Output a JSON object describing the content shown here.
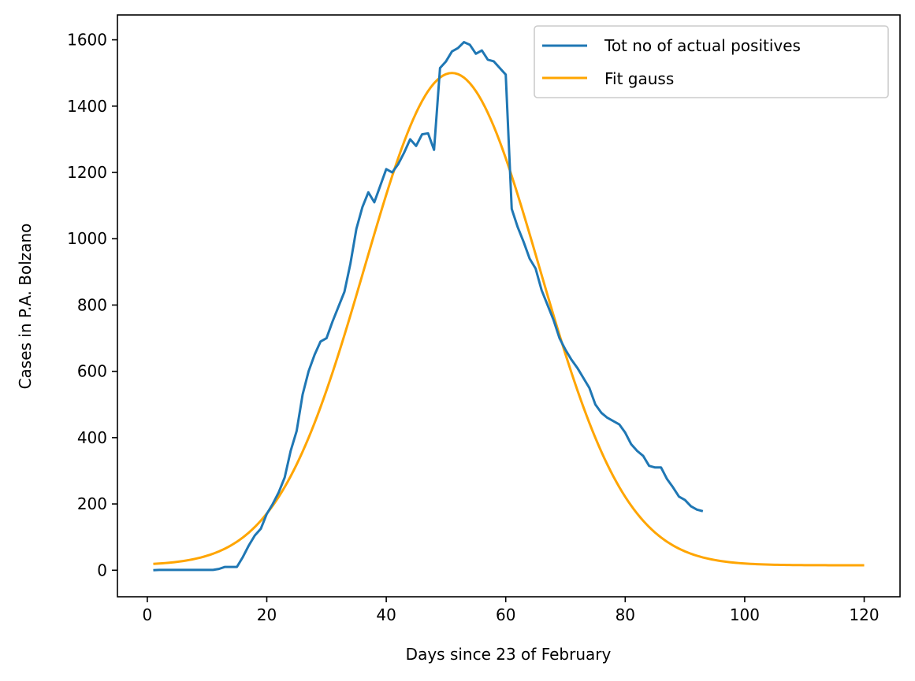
{
  "chart_data": {
    "type": "line",
    "xlabel": "Days since 23 of February",
    "ylabel": "Cases in P.A. Bolzano",
    "xlim": [
      -5,
      126
    ],
    "ylim": [
      -80,
      1675
    ],
    "xticks": [
      0,
      20,
      40,
      60,
      80,
      100,
      120
    ],
    "yticks": [
      0,
      200,
      400,
      600,
      800,
      1000,
      1200,
      1400,
      1600
    ],
    "grid": false,
    "legend_position": "upper right",
    "series": [
      {
        "name": "Tot no of actual positives",
        "color": "#1f77b4",
        "x": [
          1,
          2,
          3,
          4,
          5,
          6,
          7,
          8,
          9,
          10,
          11,
          12,
          13,
          14,
          15,
          16,
          17,
          18,
          19,
          20,
          21,
          22,
          23,
          24,
          25,
          26,
          27,
          28,
          29,
          30,
          31,
          32,
          33,
          34,
          35,
          36,
          37,
          38,
          39,
          40,
          41,
          42,
          43,
          44,
          45,
          46,
          47,
          48,
          49,
          50,
          51,
          52,
          53,
          54,
          55,
          56,
          57,
          58,
          59,
          60,
          61,
          62,
          63,
          64,
          65,
          66,
          67,
          68,
          69,
          70,
          71,
          72,
          73,
          74,
          75,
          76,
          77,
          78,
          79,
          80,
          81,
          82,
          83,
          84,
          85,
          86,
          87,
          88,
          89,
          90,
          91,
          92,
          93
        ],
        "values": [
          0,
          1,
          1,
          1,
          1,
          1,
          1,
          1,
          1,
          1,
          1,
          4,
          10,
          10,
          10,
          40,
          75,
          105,
          125,
          170,
          200,
          235,
          280,
          360,
          420,
          530,
          600,
          650,
          690,
          700,
          750,
          795,
          840,
          925,
          1030,
          1095,
          1140,
          1110,
          1160,
          1210,
          1200,
          1225,
          1260,
          1300,
          1280,
          1315,
          1318,
          1268,
          1515,
          1535,
          1565,
          1575,
          1593,
          1585,
          1558,
          1568,
          1540,
          1535,
          1515,
          1495,
          1090,
          1035,
          990,
          940,
          910,
          845,
          800,
          755,
          700,
          665,
          635,
          610,
          580,
          550,
          500,
          475,
          460,
          450,
          440,
          415,
          380,
          360,
          345,
          315,
          310,
          310,
          275,
          250,
          222,
          212,
          193,
          183,
          178
        ]
      },
      {
        "name": "Fit gauss",
        "color": "#ffa500",
        "model": {
          "amplitude": 1485,
          "mean": 51,
          "sigma": 14.6,
          "offset": 15
        },
        "x_range": [
          1,
          120
        ]
      }
    ]
  }
}
